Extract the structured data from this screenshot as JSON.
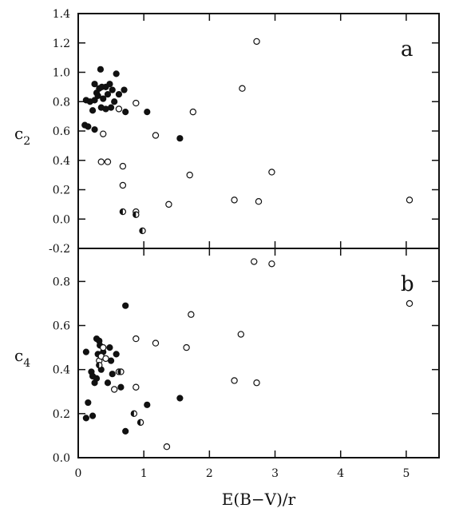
{
  "chart_data": [
    {
      "panel_label": "a",
      "type": "scatter",
      "ylabel": "c",
      "ylabel_subscript": "2",
      "xlabel": "",
      "xlim": [
        0,
        5.5
      ],
      "ylim": [
        -0.2,
        1.4
      ],
      "yticks": [
        "-0.2",
        "0.0",
        "0.2",
        "0.4",
        "0.6",
        "0.8",
        "1.0",
        "1.2",
        "1.4"
      ],
      "marker_styles": [
        "filled",
        "open",
        "half-filled"
      ],
      "series": [
        {
          "marker": "filled",
          "points": [
            [
              0.12,
              0.81
            ],
            [
              0.18,
              0.8
            ],
            [
              0.22,
              0.74
            ],
            [
              0.25,
              0.92
            ],
            [
              0.28,
              0.86
            ],
            [
              0.3,
              0.84
            ],
            [
              0.32,
              0.89
            ],
            [
              0.34,
              1.02
            ],
            [
              0.36,
              0.9
            ],
            [
              0.38,
              0.82
            ],
            [
              0.42,
              0.9
            ],
            [
              0.45,
              0.85
            ],
            [
              0.48,
              0.92
            ],
            [
              0.52,
              0.88
            ],
            [
              0.55,
              0.8
            ],
            [
              0.58,
              0.99
            ],
            [
              0.62,
              0.85
            ],
            [
              0.7,
              0.88
            ],
            [
              0.72,
              0.73
            ],
            [
              0.35,
              0.76
            ],
            [
              0.25,
              0.81
            ],
            [
              0.1,
              0.64
            ],
            [
              0.15,
              0.63
            ],
            [
              0.25,
              0.61
            ],
            [
              0.42,
              0.75
            ],
            [
              0.5,
              0.76
            ],
            [
              1.05,
              0.73
            ],
            [
              1.55,
              0.55
            ]
          ]
        },
        {
          "marker": "open",
          "points": [
            [
              0.62,
              0.75
            ],
            [
              0.88,
              0.79
            ],
            [
              1.18,
              0.57
            ],
            [
              1.75,
              0.73
            ],
            [
              2.72,
              1.21
            ],
            [
              2.5,
              0.89
            ],
            [
              1.7,
              0.3
            ],
            [
              2.95,
              0.32
            ],
            [
              0.38,
              0.58
            ],
            [
              0.35,
              0.39
            ],
            [
              0.45,
              0.39
            ],
            [
              0.68,
              0.36
            ],
            [
              0.68,
              0.23
            ],
            [
              1.38,
              0.1
            ],
            [
              2.38,
              0.13
            ],
            [
              2.75,
              0.12
            ],
            [
              5.05,
              0.13
            ],
            [
              0.88,
              0.05
            ]
          ]
        },
        {
          "marker": "half-filled",
          "points": [
            [
              0.68,
              0.05
            ],
            [
              0.88,
              0.03
            ],
            [
              0.98,
              -0.08
            ]
          ]
        }
      ]
    },
    {
      "panel_label": "b",
      "type": "scatter",
      "ylabel": "c",
      "ylabel_subscript": "4",
      "xlabel": "E(B−V)/r",
      "xlim": [
        0,
        5.5
      ],
      "ylim": [
        0.0,
        0.95
      ],
      "yticks": [
        "0.0",
        "0.2",
        "0.4",
        "0.6",
        "0.8"
      ],
      "xticks": [
        "0",
        "1",
        "2",
        "3",
        "4",
        "5"
      ],
      "marker_styles": [
        "filled",
        "open",
        "half-filled"
      ],
      "series": [
        {
          "marker": "filled",
          "points": [
            [
              0.12,
              0.48
            ],
            [
              0.15,
              0.25
            ],
            [
              0.12,
              0.18
            ],
            [
              0.22,
              0.19
            ],
            [
              0.2,
              0.39
            ],
            [
              0.22,
              0.37
            ],
            [
              0.25,
              0.34
            ],
            [
              0.28,
              0.36
            ],
            [
              0.3,
              0.47
            ],
            [
              0.28,
              0.54
            ],
            [
              0.32,
              0.53
            ],
            [
              0.33,
              0.51
            ],
            [
              0.35,
              0.4
            ],
            [
              0.38,
              0.48
            ],
            [
              0.45,
              0.34
            ],
            [
              0.48,
              0.5
            ],
            [
              0.5,
              0.44
            ],
            [
              0.52,
              0.38
            ],
            [
              0.58,
              0.47
            ],
            [
              0.65,
              0.32
            ],
            [
              0.72,
              0.69
            ],
            [
              0.72,
              0.12
            ],
            [
              1.05,
              0.24
            ],
            [
              1.55,
              0.27
            ]
          ]
        },
        {
          "marker": "open",
          "points": [
            [
              0.32,
              0.44
            ],
            [
              0.35,
              0.46
            ],
            [
              0.38,
              0.5
            ],
            [
              0.42,
              0.45
            ],
            [
              0.55,
              0.31
            ],
            [
              0.62,
              0.39
            ],
            [
              0.88,
              0.54
            ],
            [
              0.88,
              0.32
            ],
            [
              1.18,
              0.52
            ],
            [
              1.65,
              0.5
            ],
            [
              1.72,
              0.65
            ],
            [
              2.38,
              0.35
            ],
            [
              2.48,
              0.56
            ],
            [
              2.68,
              0.89
            ],
            [
              2.95,
              0.88
            ],
            [
              2.72,
              0.34
            ],
            [
              5.05,
              0.7
            ],
            [
              1.35,
              0.05
            ]
          ]
        },
        {
          "marker": "half-filled",
          "points": [
            [
              0.32,
              0.42
            ],
            [
              0.65,
              0.39
            ],
            [
              0.85,
              0.2
            ],
            [
              0.95,
              0.16
            ]
          ]
        }
      ]
    }
  ]
}
